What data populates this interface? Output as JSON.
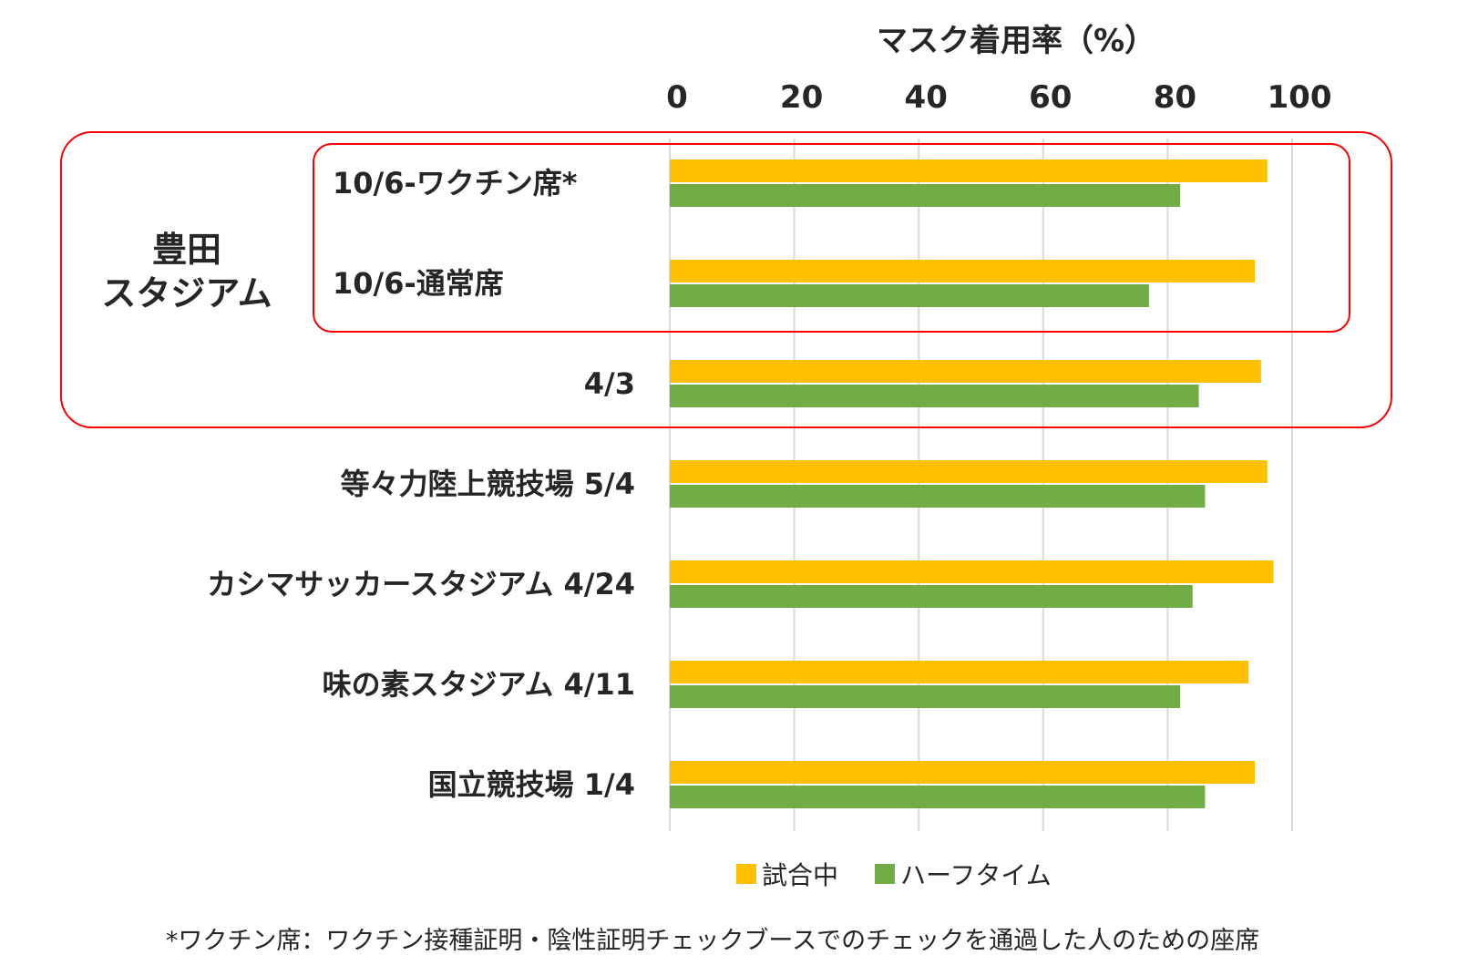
{
  "chart_data": {
    "type": "bar",
    "orientation": "horizontal",
    "title": "",
    "xlabel": "マスク着用率（%）",
    "ylabel": "",
    "xlim": [
      0,
      100
    ],
    "xticks": [
      "0",
      "20",
      "40",
      "60",
      "80",
      "100"
    ],
    "grid": true,
    "legend_position": "bottom",
    "categories": [
      "10/6-ワクチン席*",
      "10/6-通常席",
      "4/3",
      "等々力陸上競技場 5/4",
      "カシマサッカースタジアム 4/24",
      "味の素スタジアム 4/11",
      "国立競技場 1/4"
    ],
    "series": [
      {
        "name": "試合中",
        "color": "#FFC000",
        "values": [
          96,
          94,
          95,
          96,
          97,
          93,
          94
        ]
      },
      {
        "name": "ハーフタイム",
        "color": "#70AD47",
        "values": [
          82,
          77,
          85,
          86,
          84,
          82,
          86
        ]
      }
    ],
    "groups": [
      {
        "label_lines": [
          "豊田",
          "スタジアム"
        ],
        "categories": [
          0,
          1,
          2
        ],
        "outline_color": "#FF0000"
      }
    ],
    "subgroups": [
      {
        "categories": [
          0,
          1
        ],
        "outline_color": "#FF0000"
      }
    ],
    "footnote": "*ワクチン席：ワクチン接種証明・陰性証明チェックブースでのチェックを通過した人のための座席"
  }
}
